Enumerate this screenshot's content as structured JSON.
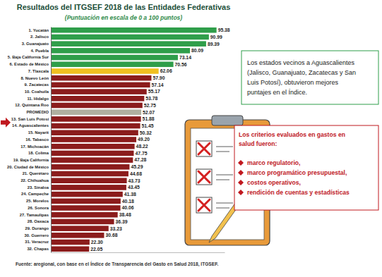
{
  "chart_data": {
    "type": "bar",
    "orientation": "horizontal",
    "title": "Resultados del ITGSEF 2018 de las Entidades Federativas",
    "subtitle": "(Puntuación en escala de 0 a 100 puntos)",
    "categories": [
      "1. Yucatán",
      "2. Jalisco",
      "3. Guanajuato",
      "4. Puebla",
      "5. Baja California Sur",
      "6. Estado de México",
      "7. Tlaxcala",
      "8. Nuevo León",
      "9. Zacatecas",
      "10. Coahuila",
      "11. Hidalgo",
      "12. Quintana Roo",
      "PROMEDIO",
      "13. San Luis Potosí",
      "14. Aguascalientes",
      "15. Nayarit",
      "16. Tabasco",
      "17. Michoacán",
      "18. Colima",
      "19. Baja California",
      "20. Ciudad de México",
      "21. Querétaro",
      "22. Chihuahua",
      "23. Sinaloa",
      "24. Campeche",
      "25. Morelos",
      "26. Sonora",
      "27. Tamaulipas",
      "28. Oaxaca",
      "29. Durango",
      "30. Guerrero",
      "31. Veracruz",
      "32. Chapas"
    ],
    "values": [
      95.38,
      90.99,
      89.39,
      80.09,
      73.14,
      70.56,
      62.06,
      57.9,
      57.14,
      55.17,
      53.78,
      52.75,
      52.07,
      51.88,
      51.45,
      50.32,
      49.2,
      48.22,
      47.75,
      47.28,
      45.29,
      44.68,
      43.73,
      43.45,
      41.38,
      40.18,
      40.06,
      38.48,
      36.39,
      33.23,
      30.68,
      22.3,
      22.05
    ],
    "value_labels": [
      "95.38",
      "90.99",
      "89.39",
      "80.09",
      "73.14",
      "70.56",
      "62.06",
      "57.90",
      "57.14",
      "55.17",
      "53.78",
      "52.75",
      "52.07",
      "51.88",
      "51.45",
      "50.32",
      "49.20",
      "48.22",
      "47.75",
      "47.28",
      "45.29",
      "44.68",
      "43.73",
      "43.45",
      "41.38",
      "40.18",
      "40.06",
      "38.48",
      "36.39",
      "33.23",
      "30.68",
      "22.30",
      "22.05"
    ],
    "colors": [
      "#2f9e4a",
      "#2f9e4a",
      "#2f9e4a",
      "#2f9e4a",
      "#2f9e4a",
      "#2f9e4a",
      "#f0c020",
      "#8b1c1c",
      "#8b1c1c",
      "#8b1c1c",
      "#8b1c1c",
      "#8b1c1c",
      "#b0b0a0",
      "#8b1c1c",
      "#8b1c1c",
      "#8b1c1c",
      "#8b1c1c",
      "#8b1c1c",
      "#8b1c1c",
      "#8b1c1c",
      "#8b1c1c",
      "#8b1c1c",
      "#8b1c1c",
      "#8b1c1c",
      "#8b1c1c",
      "#8b1c1c",
      "#8b1c1c",
      "#8b1c1c",
      "#8b1c1c",
      "#8b1c1c",
      "#8b1c1c",
      "#8b1c1c",
      "#8b1c1c"
    ],
    "xlim": [
      0,
      100
    ],
    "tick_labels": "y",
    "data_labels": true,
    "grid": false,
    "annotations": [
      {
        "lines": [
          "Los estados vecinos a Aguascalientes",
          "(Jalisco, Guanajuato, Zacatecas y San",
          "Luis Potosí), obtuvieron mejores",
          "puntajes en el Índice."
        ]
      },
      {
        "lines": [
          "Los criterios evaluados en gastos en",
          "salud fueron:"
        ],
        "items": [
          "marco regulatorio,",
          "marco programático presupuestal,",
          "costos operativos,",
          "rendición de cuentas y estadísticas"
        ]
      }
    ],
    "source": "Fuente: aregional, con base en el Índice de Transparencia del Gasto en Salud 2018, ITGSEF."
  }
}
